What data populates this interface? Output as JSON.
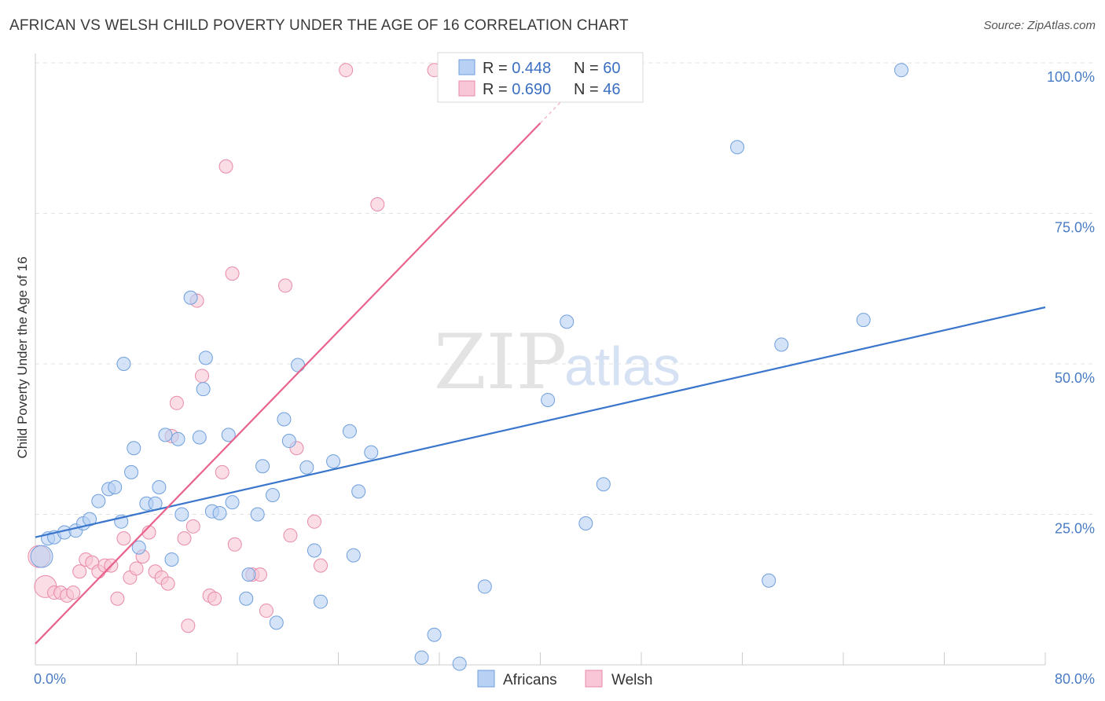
{
  "title": "AFRICAN VS WELSH CHILD POVERTY UNDER THE AGE OF 16 CORRELATION CHART",
  "source": "Source: ZipAtlas.com",
  "watermark": {
    "zip": "ZIP",
    "atlas": "atlas"
  },
  "colors": {
    "blue_fill": "#b7d0f3",
    "blue_stroke": "#6f9fdc",
    "blue_line": "#3a76cc",
    "pink_fill": "#f8c6d6",
    "pink_stroke": "#e98aa8",
    "pink_line": "#e8628c",
    "grid": "#e2e2e2",
    "tick_text": "#4a7cc4"
  },
  "legend": {
    "row1": {
      "r_label": "R = ",
      "r_value": "0.448",
      "n_label": "N = ",
      "n_value": "60"
    },
    "row2": {
      "r_label": "R = ",
      "r_value": "0.690",
      "n_label": "N = ",
      "n_value": "46"
    }
  },
  "bottom_legend": {
    "africans": "Africans",
    "welsh": "Welsh"
  },
  "chart_data": {
    "type": "scatter",
    "title": "AFRICAN VS WELSH CHILD POVERTY UNDER THE AGE OF 16 CORRELATION CHART",
    "xlabel": "",
    "ylabel": "Child Poverty Under the Age of 16",
    "xlim": [
      0,
      80
    ],
    "ylim": [
      0,
      100
    ],
    "x_tick_labels": [
      "0.0%",
      "80.0%"
    ],
    "y_tick_values": [
      25,
      50,
      75,
      100
    ],
    "y_tick_labels": [
      "25.0%",
      "50.0%",
      "75.0%",
      "100.0%"
    ],
    "grid": true,
    "legend_position": "top-center",
    "series": [
      {
        "name": "Africans",
        "r": 0.448,
        "n": 60,
        "trend": {
          "x": [
            0,
            80
          ],
          "y": [
            21.2,
            59.4
          ]
        },
        "points": [
          [
            0.5,
            18.0
          ],
          [
            1.0,
            21.0
          ],
          [
            1.5,
            21.2
          ],
          [
            2.3,
            22.0
          ],
          [
            3.2,
            22.3
          ],
          [
            3.8,
            23.5
          ],
          [
            4.3,
            24.2
          ],
          [
            5.0,
            27.2
          ],
          [
            5.8,
            29.2
          ],
          [
            6.3,
            29.5
          ],
          [
            6.8,
            23.8
          ],
          [
            7.8,
            36.0
          ],
          [
            7.6,
            32.0
          ],
          [
            8.2,
            19.5
          ],
          [
            8.8,
            26.8
          ],
          [
            9.5,
            26.8
          ],
          [
            9.8,
            29.5
          ],
          [
            10.3,
            38.2
          ],
          [
            10.8,
            17.5
          ],
          [
            11.3,
            37.5
          ],
          [
            11.6,
            25.0
          ],
          [
            12.3,
            61.0
          ],
          [
            13.0,
            37.8
          ],
          [
            13.3,
            45.8
          ],
          [
            13.5,
            51.0
          ],
          [
            14.0,
            25.5
          ],
          [
            14.6,
            25.2
          ],
          [
            15.3,
            38.2
          ],
          [
            15.6,
            27.0
          ],
          [
            16.7,
            11.0
          ],
          [
            16.9,
            15.0
          ],
          [
            17.6,
            25.0
          ],
          [
            18.0,
            33.0
          ],
          [
            18.8,
            28.2
          ],
          [
            19.1,
            7.0
          ],
          [
            19.7,
            40.8
          ],
          [
            20.1,
            37.2
          ],
          [
            20.8,
            49.8
          ],
          [
            21.5,
            32.8
          ],
          [
            22.1,
            19.0
          ],
          [
            22.6,
            10.5
          ],
          [
            23.6,
            33.8
          ],
          [
            24.9,
            38.8
          ],
          [
            25.6,
            28.8
          ],
          [
            25.2,
            18.2
          ],
          [
            26.6,
            35.3
          ],
          [
            30.6,
            1.2
          ],
          [
            31.6,
            5.0
          ],
          [
            33.6,
            0.2
          ],
          [
            35.6,
            13.0
          ],
          [
            40.6,
            44.0
          ],
          [
            42.1,
            57.0
          ],
          [
            43.6,
            23.5
          ],
          [
            55.6,
            86.0
          ],
          [
            58.1,
            14.0
          ],
          [
            59.1,
            53.2
          ],
          [
            65.6,
            57.3
          ],
          [
            68.6,
            98.8
          ],
          [
            45.0,
            30.0
          ],
          [
            7.0,
            50.0
          ]
        ]
      },
      {
        "name": "Welsh",
        "r": 0.69,
        "n": 46,
        "trend": {
          "x": [
            0,
            40
          ],
          "y": [
            3.5,
            90.0
          ]
        },
        "points": [
          [
            0.3,
            18.0
          ],
          [
            0.8,
            13.0
          ],
          [
            1.5,
            12.0
          ],
          [
            2.0,
            12.0
          ],
          [
            2.5,
            11.5
          ],
          [
            3.0,
            12.0
          ],
          [
            3.5,
            15.5
          ],
          [
            4.0,
            17.5
          ],
          [
            4.5,
            17.0
          ],
          [
            5.0,
            15.5
          ],
          [
            5.5,
            16.5
          ],
          [
            6.0,
            16.5
          ],
          [
            6.5,
            11.0
          ],
          [
            7.0,
            21.0
          ],
          [
            7.5,
            14.5
          ],
          [
            8.0,
            16.0
          ],
          [
            8.5,
            18.0
          ],
          [
            9.0,
            22.0
          ],
          [
            9.5,
            15.5
          ],
          [
            10.0,
            14.5
          ],
          [
            10.5,
            13.5
          ],
          [
            10.8,
            38.0
          ],
          [
            11.2,
            43.5
          ],
          [
            11.8,
            21.0
          ],
          [
            12.1,
            6.5
          ],
          [
            12.5,
            23.0
          ],
          [
            12.8,
            60.5
          ],
          [
            13.2,
            48.0
          ],
          [
            13.8,
            11.5
          ],
          [
            14.2,
            11.0
          ],
          [
            14.8,
            32.0
          ],
          [
            15.1,
            82.8
          ],
          [
            15.6,
            65.0
          ],
          [
            15.8,
            20.0
          ],
          [
            17.2,
            15.0
          ],
          [
            17.8,
            15.0
          ],
          [
            18.3,
            9.0
          ],
          [
            19.8,
            63.0
          ],
          [
            20.2,
            21.5
          ],
          [
            20.7,
            36.0
          ],
          [
            22.1,
            23.8
          ],
          [
            22.6,
            16.5
          ],
          [
            24.6,
            98.8
          ],
          [
            27.1,
            76.5
          ],
          [
            31.6,
            98.8
          ],
          [
            35.8,
            98.8
          ]
        ]
      }
    ]
  }
}
